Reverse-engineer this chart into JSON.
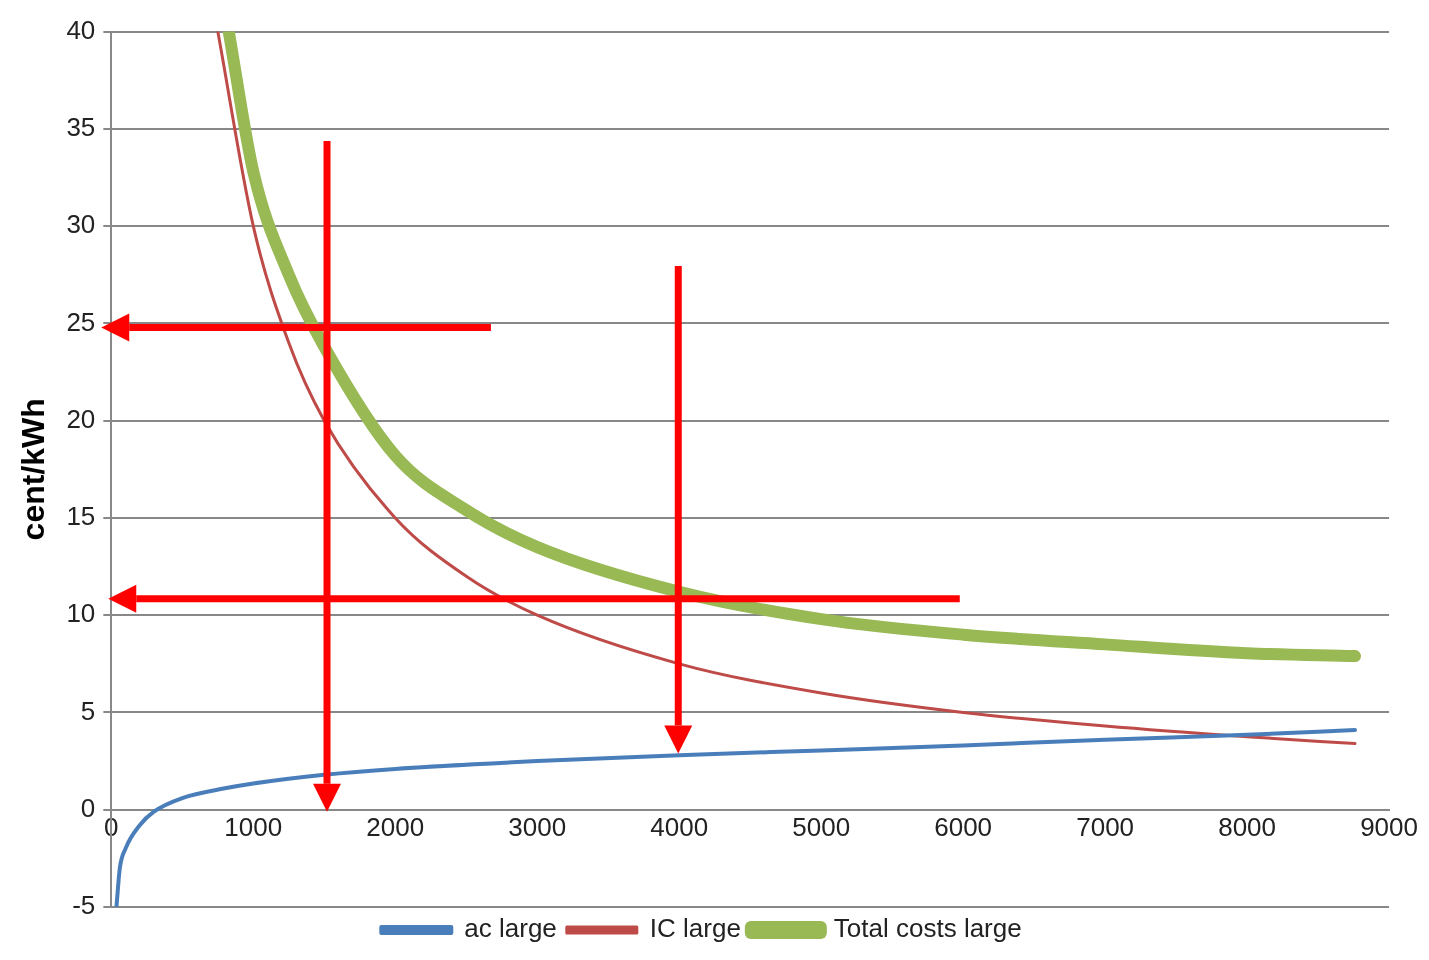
{
  "chart_data": {
    "type": "line",
    "ylabel": "cent/kWh",
    "xlim": [
      0,
      9000
    ],
    "xticks": [
      0,
      1000,
      2000,
      3000,
      4000,
      5000,
      6000,
      7000,
      8000,
      9000
    ],
    "ylim": [
      -5,
      40
    ],
    "yticks": [
      -5,
      0,
      5,
      10,
      15,
      20,
      25,
      30,
      35,
      40
    ],
    "grid": "y",
    "legend": "bottom",
    "series": [
      {
        "name": "ac large",
        "color": "#4a7ebb",
        "x": [
          36,
          60,
          100,
          200,
          300,
          500,
          800,
          1000,
          1500,
          2000,
          3000,
          4000,
          5000,
          6000,
          7000,
          8000,
          8760
        ],
        "values": [
          -5,
          -3,
          -2,
          -0.8,
          -0.1,
          0.6,
          1.1,
          1.35,
          1.8,
          2.1,
          2.5,
          2.8,
          3.05,
          3.3,
          3.6,
          3.85,
          4.1
        ]
      },
      {
        "name": "IC large",
        "color": "#be4b48",
        "x": [
          750,
          1000,
          1250,
          1500,
          2000,
          2500,
          3000,
          4000,
          5000,
          6000,
          7000,
          8000,
          8760
        ],
        "values": [
          40,
          30,
          24,
          20,
          15,
          12,
          10,
          7.5,
          6,
          5,
          4.3,
          3.75,
          3.4
        ]
      },
      {
        "name": "Total costs large",
        "color": "#98b954",
        "x": [
          827,
          1000,
          1250,
          1500,
          2000,
          2500,
          3000,
          4000,
          5000,
          6000,
          7000,
          8000,
          8760
        ],
        "values": [
          40,
          32.8,
          27.5,
          23.8,
          18.2,
          15.4,
          13.5,
          11.2,
          9.8,
          9,
          8.5,
          8.05,
          7.9
        ]
      }
    ]
  }
}
